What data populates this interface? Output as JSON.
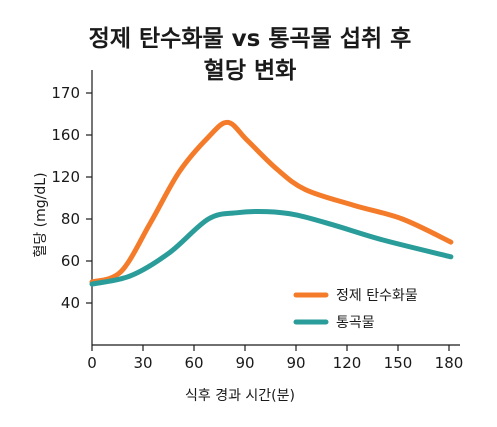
{
  "chart_data": {
    "type": "line",
    "title_lines": [
      "정제 탄수화물 vs 통곡물 섭취 후",
      "혈당 변화"
    ],
    "xlabel": "식후 경과 시간(분)",
    "ylabel": "혈당 (mg/dL)",
    "x_ticks": [
      "0",
      "30",
      "60",
      "90",
      "90",
      "120",
      "150",
      "180"
    ],
    "y_ticks": [
      "40",
      "60",
      "80",
      "120",
      "160",
      "170"
    ],
    "grid": false,
    "legend_position": "lower-right",
    "series": [
      {
        "name": "정제 탄수화물",
        "color": "#f47b2a",
        "points": [
          [
            0,
            50
          ],
          [
            15,
            55
          ],
          [
            30,
            78
          ],
          [
            45,
            125
          ],
          [
            60,
            158
          ],
          [
            70,
            163
          ],
          [
            80,
            155
          ],
          [
            95,
            128
          ],
          [
            110,
            108
          ],
          [
            135,
            93
          ],
          [
            160,
            80
          ],
          [
            185,
            69
          ]
        ]
      },
      {
        "name": "통곡물",
        "color": "#2a9d9a",
        "points": [
          [
            0,
            49
          ],
          [
            20,
            53
          ],
          [
            40,
            64
          ],
          [
            60,
            80
          ],
          [
            75,
            86
          ],
          [
            90,
            87
          ],
          [
            105,
            84
          ],
          [
            125,
            77
          ],
          [
            150,
            70
          ],
          [
            185,
            62
          ]
        ]
      }
    ]
  }
}
